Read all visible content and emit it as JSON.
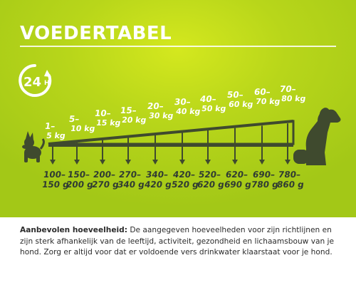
{
  "header": {
    "title": "VOEDERTABEL",
    "duration_icon": {
      "name": "24h-clock-icon",
      "label": "24",
      "unit": "H"
    }
  },
  "table": {
    "weights": [
      {
        "from": "1–",
        "to": "5 kg"
      },
      {
        "from": "5–",
        "to": "10 kg"
      },
      {
        "from": "10–",
        "to": "15 kg"
      },
      {
        "from": "15–",
        "to": "20 kg"
      },
      {
        "from": "20–",
        "to": "30 kg"
      },
      {
        "from": "30–",
        "to": "40 kg"
      },
      {
        "from": "40–",
        "to": "50 kg"
      },
      {
        "from": "50–",
        "to": "60 kg"
      },
      {
        "from": "60–",
        "to": "70 kg"
      },
      {
        "from": "70–",
        "to": "80 kg"
      }
    ],
    "amounts": [
      {
        "from": "100–",
        "to": "150 g"
      },
      {
        "from": "150–",
        "to": "200 g"
      },
      {
        "from": "200–",
        "to": "270 g"
      },
      {
        "from": "270–",
        "to": "340 g"
      },
      {
        "from": "340–",
        "to": "420 g"
      },
      {
        "from": "420–",
        "to": "520 g"
      },
      {
        "from": "520–",
        "to": "620 g"
      },
      {
        "from": "620–",
        "to": "690 g"
      },
      {
        "from": "690–",
        "to": "780 g"
      },
      {
        "from": "780–",
        "to": "860 g"
      }
    ],
    "small_dog_icon": "small-dog-icon",
    "large_dog_icon": "large-dog-icon"
  },
  "footer": {
    "label": "Aanbevolen hoeveelheid:",
    "text": " De aangegeven hoeveelheden voor zijn richtlijnen en zijn sterk afhankelijk van de leeftijd, activiteit, gezondheid en lichaamsbouw van je hond. Zorg er altijd voor dat er voldoende vers drinkwater klaarstaat voor je hond."
  },
  "colors": {
    "background": "#b8d61a",
    "text_dark": "#2f3a33",
    "art": "#3f4a2e",
    "white": "#ffffff"
  }
}
